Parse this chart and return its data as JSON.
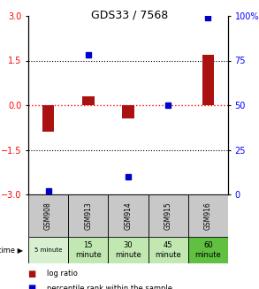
{
  "title": "GDS33 / 7568",
  "samples": [
    "GSM908",
    "GSM913",
    "GSM914",
    "GSM915",
    "GSM916"
  ],
  "time_labels_row1": [
    "5 minute",
    "15",
    "30",
    "45",
    "60"
  ],
  "time_labels_row2": [
    "",
    "minute",
    "minute",
    "minute",
    "minute"
  ],
  "log_ratios": [
    -0.9,
    0.3,
    -0.45,
    0.0,
    1.7
  ],
  "percentile_ranks": [
    2.0,
    78.0,
    10.0,
    50.0,
    99.0
  ],
  "bar_color": "#aa1111",
  "dot_color": "#0000cc",
  "ylim_left": [
    -3,
    3
  ],
  "ylim_right": [
    0,
    100
  ],
  "yticks_left": [
    -3,
    -1.5,
    0,
    1.5,
    3
  ],
  "yticks_right": [
    0,
    25,
    50,
    75,
    100
  ],
  "legend_log_ratio": "log ratio",
  "legend_percentile": "percentile rank within the sample",
  "sample_col_color": "#c8c8c8",
  "lighter_green": "#d8f0d0",
  "medium_green": "#c0e8b0",
  "darker_green": "#60c040",
  "time_colors": [
    "#d8f0d0",
    "#c0e8b0",
    "#c0e8b0",
    "#c0e8b0",
    "#60c040"
  ]
}
